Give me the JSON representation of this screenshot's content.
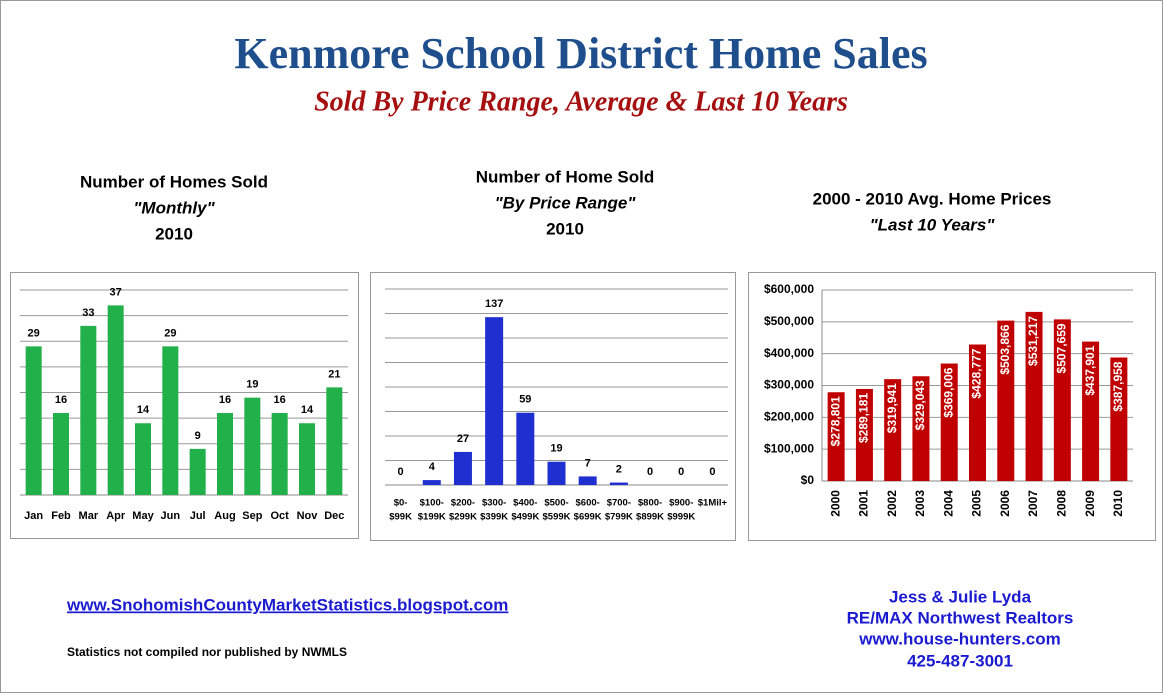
{
  "header": {
    "title": "Kenmore School District Home Sales",
    "subtitle": "Sold By Price Range, Average & Last 10 Years"
  },
  "chart_data": [
    {
      "type": "bar",
      "title": "Number of Homes Sold",
      "subtitle": "\"Monthly\"",
      "period": "2010",
      "categories": [
        "Jan",
        "Feb",
        "Mar",
        "Apr",
        "May",
        "Jun",
        "Jul",
        "Aug",
        "Sep",
        "Oct",
        "Nov",
        "Dec"
      ],
      "values": [
        29,
        16,
        33,
        37,
        14,
        29,
        9,
        16,
        19,
        16,
        14,
        21
      ],
      "color": "#22b04a",
      "ylim": [
        0,
        40
      ],
      "gridlines": [
        5,
        10,
        15,
        20,
        25,
        30,
        35,
        40
      ],
      "grid": true
    },
    {
      "type": "bar",
      "title": "Number of Home Sold",
      "subtitle": "\"By Price Range\"",
      "period": "2010",
      "categories": [
        [
          "$0-",
          "$99K"
        ],
        [
          "$100-",
          "$199K"
        ],
        [
          "$200-",
          "$299K"
        ],
        [
          "$300-",
          "$399K"
        ],
        [
          "$400-",
          "$499K"
        ],
        [
          "$500-",
          "$599K"
        ],
        [
          "$600-",
          "$699K"
        ],
        [
          "$700-",
          "$799K"
        ],
        [
          "$800-",
          "$899K"
        ],
        [
          "$900-",
          "$999K"
        ],
        [
          "$1Mil+"
        ]
      ],
      "values": [
        0,
        4,
        27,
        137,
        59,
        19,
        7,
        2,
        0,
        0,
        0
      ],
      "color": "#1f2fd0",
      "ylim": [
        0,
        160
      ],
      "gridlines": [
        20,
        40,
        60,
        80,
        100,
        120,
        140,
        160
      ],
      "grid": true
    },
    {
      "type": "bar",
      "title": "2000 - 2010 Avg. Home Prices",
      "subtitle": "\"Last 10 Years\"",
      "categories": [
        "2000",
        "2001",
        "2002",
        "2003",
        "2004",
        "2005",
        "2006",
        "2007",
        "2008",
        "2009",
        "2010"
      ],
      "values": [
        278801,
        289181,
        319941,
        329043,
        369006,
        428777,
        503866,
        531217,
        507659,
        437901,
        387958
      ],
      "value_labels": [
        "$278,801",
        "$289,181",
        "$319,941",
        "$329,043",
        "$369,006",
        "$428,777",
        "$503,866",
        "$531,217",
        "$507,659",
        "$437,901",
        "$387,958"
      ],
      "color": "#c00000",
      "ylim": [
        0,
        600000
      ],
      "yticks": [
        {
          "value": 0,
          "label": "$0"
        },
        {
          "value": 100000,
          "label": "$100,000"
        },
        {
          "value": 200000,
          "label": "$200,000"
        },
        {
          "value": 300000,
          "label": "$300,000"
        },
        {
          "value": 400000,
          "label": "$400,000"
        },
        {
          "value": 500000,
          "label": "$500,000"
        },
        {
          "value": 600000,
          "label": "$600,000"
        }
      ],
      "grid": true
    }
  ],
  "footer": {
    "link": "www.SnohomishCountyMarketStatistics.blogspot.com",
    "disclaimer": "Statistics not compiled nor published by NWMLS",
    "contact": [
      "Jess & Julie Lyda",
      "RE/MAX Northwest Realtors",
      "www.house-hunters.com",
      "425-487-3001"
    ]
  }
}
